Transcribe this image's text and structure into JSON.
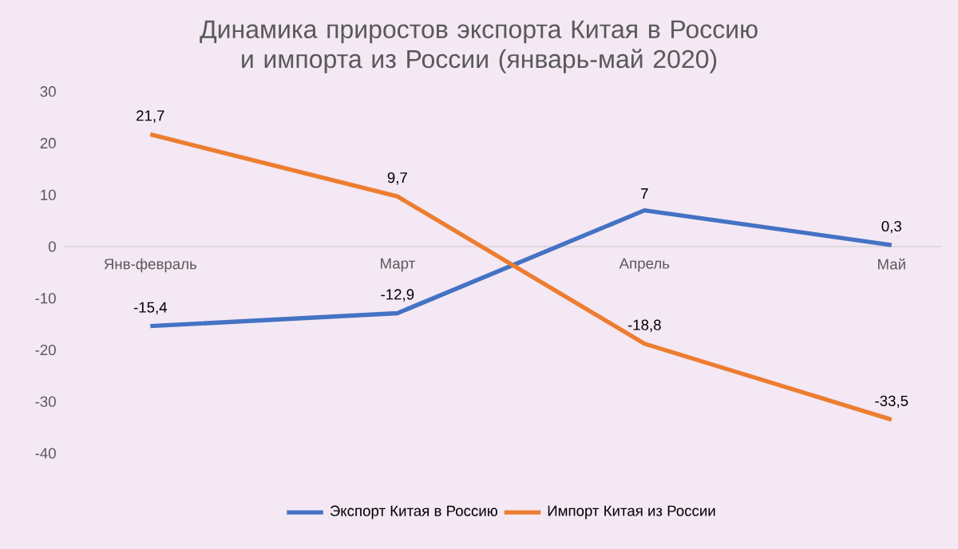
{
  "chart_data": {
    "type": "line",
    "title": "Динамика приростов экспорта Китая в Россию и импорта из России (январь-май 2020)",
    "categories": [
      "Янв-февраль",
      "Март",
      "Апрель",
      "Май"
    ],
    "series": [
      {
        "name": "Экспорт Китая в Россию",
        "color": "#4472c4",
        "values": [
          -15.4,
          -12.9,
          7,
          0.3
        ],
        "value_labels": [
          "-15,4",
          "-12,9",
          "7",
          "0,3"
        ]
      },
      {
        "name": "Импорт Китая из России",
        "color": "#ed7d31",
        "values": [
          21.7,
          9.7,
          -18.8,
          -33.5
        ],
        "value_labels": [
          "21,7",
          "9,7",
          "-18,8",
          "-33,5"
        ]
      }
    ],
    "ylim": [
      -40,
      30
    ],
    "yticks": [
      -40,
      -30,
      -20,
      -10,
      0,
      10,
      20,
      30
    ],
    "grid": false,
    "legend": "bottom",
    "marker": "none",
    "line_style": "solid"
  }
}
